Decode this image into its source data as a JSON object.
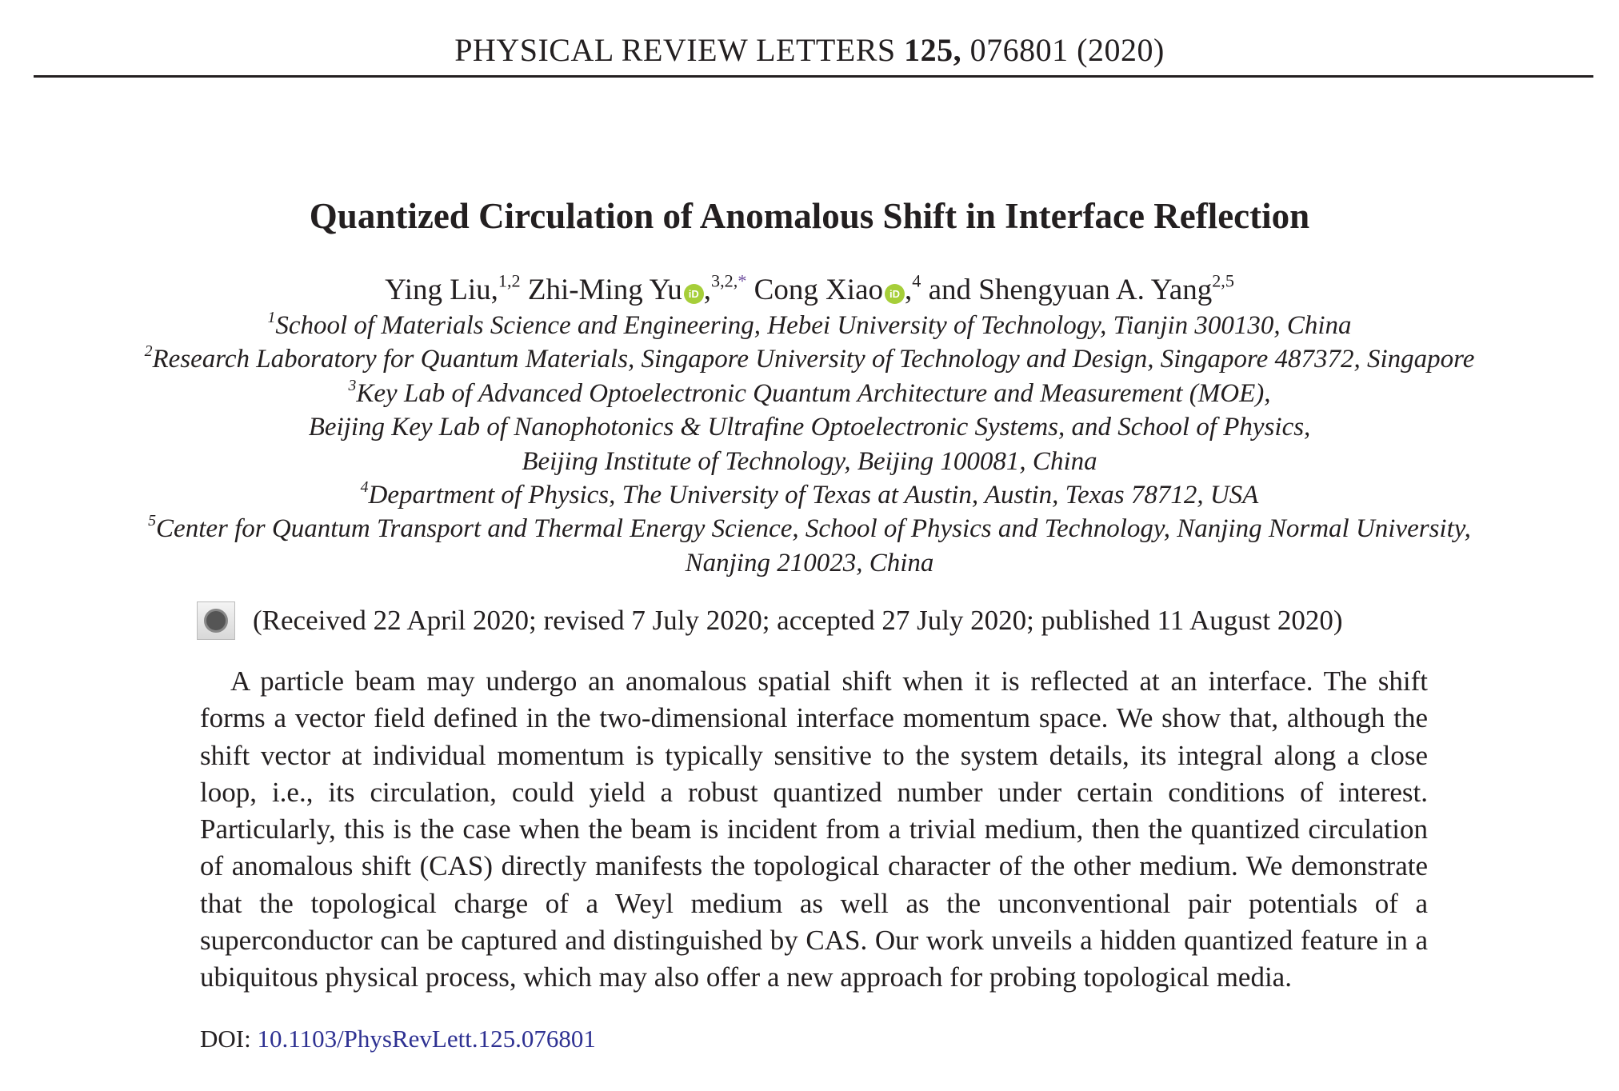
{
  "header": {
    "journal": "PHYSICAL REVIEW LETTERS",
    "volume": "125,",
    "article": "076801 (2020)"
  },
  "title": "Quantized Circulation of Anomalous Shift in Interface Reflection",
  "authors": [
    {
      "name": "Ying Liu,",
      "sup": "1,2"
    },
    {
      "name": "Zhi-Ming Yu",
      "sup": "3,2,",
      "star": "*",
      "orcid": "iD"
    },
    {
      "name": "Cong Xiao",
      "sup": "4",
      "orcid": "iD"
    },
    {
      "name": "and Shengyuan A. Yang",
      "sup": "2,5"
    }
  ],
  "affiliations": [
    {
      "num": "1",
      "lines": [
        "School of Materials Science and Engineering, Hebei University of Technology, Tianjin 300130, China"
      ]
    },
    {
      "num": "2",
      "lines": [
        "Research Laboratory for Quantum Materials, Singapore University of Technology and Design, Singapore 487372, Singapore"
      ]
    },
    {
      "num": "3",
      "lines": [
        "Key Lab of Advanced Optoelectronic Quantum Architecture and Measurement (MOE),",
        "Beijing Key Lab of Nanophotonics & Ultrafine Optoelectronic Systems, and School of Physics,",
        "Beijing Institute of Technology, Beijing 100081, China"
      ]
    },
    {
      "num": "4",
      "lines": [
        "Department of Physics, The University of Texas at Austin, Austin, Texas 78712, USA"
      ]
    },
    {
      "num": "5",
      "lines": [
        "Center for Quantum Transport and Thermal Energy Science, School of Physics and Technology, Nanjing Normal University,",
        "Nanjing 210023, China"
      ]
    }
  ],
  "received": "(Received 22 April 2020; revised 7 July 2020; accepted 27 July 2020; published 11 August 2020)",
  "check_icon": "check-for-updates-icon",
  "abstract": "A particle beam may undergo an anomalous spatial shift when it is reflected at an interface. The shift forms a vector field defined in the two-dimensional interface momentum space. We show that, although the shift vector at individual momentum is typically sensitive to the system details, its integral along a close loop, i.e., its circulation, could yield a robust quantized number under certain conditions of interest. Particularly, this is the case when the beam is incident from a trivial medium, then the quantized circulation of anomalous shift (CAS) directly manifests the topological character of the other medium. We demonstrate that the topological charge of a Weyl medium as well as the unconventional pair potentials of a superconductor can be captured and distinguished by CAS. Our work unveils a hidden quantized feature in a ubiquitous physical process, which may also offer a new approach for probing topological media.",
  "doi": {
    "label": "DOI:",
    "value": "10.1103/PhysRevLett.125.076801"
  },
  "colors": {
    "text": "#231f20",
    "link": "#2e3192",
    "orcid": "#a6ce39"
  }
}
